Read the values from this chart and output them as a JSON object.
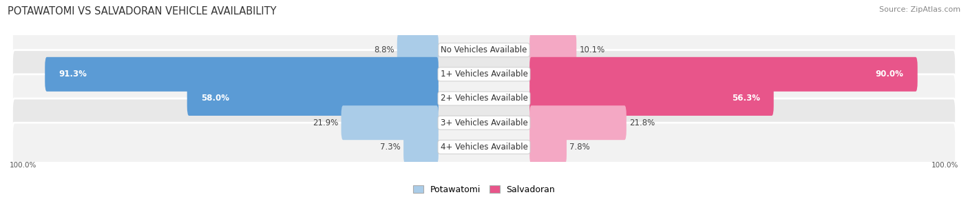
{
  "title": "POTAWATOMI VS SALVADORAN VEHICLE AVAILABILITY",
  "source": "Source: ZipAtlas.com",
  "categories": [
    "No Vehicles Available",
    "1+ Vehicles Available",
    "2+ Vehicles Available",
    "3+ Vehicles Available",
    "4+ Vehicles Available"
  ],
  "potawatomi_values": [
    8.8,
    91.3,
    58.0,
    21.9,
    7.3
  ],
  "salvadoran_values": [
    10.1,
    90.0,
    56.3,
    21.8,
    7.8
  ],
  "potawatomi_color_full": "#5b9bd5",
  "salvadoran_color_full": "#e8558a",
  "potawatomi_color_light": "#aacce8",
  "salvadoran_color_light": "#f4a8c4",
  "row_bg": [
    "#f2f2f2",
    "#e8e8e8"
  ],
  "label_inside_threshold": 40,
  "max_value": 100.0,
  "bar_height": 0.62,
  "label_fontsize": 8.5,
  "title_fontsize": 10.5,
  "source_fontsize": 8,
  "legend_fontsize": 9
}
